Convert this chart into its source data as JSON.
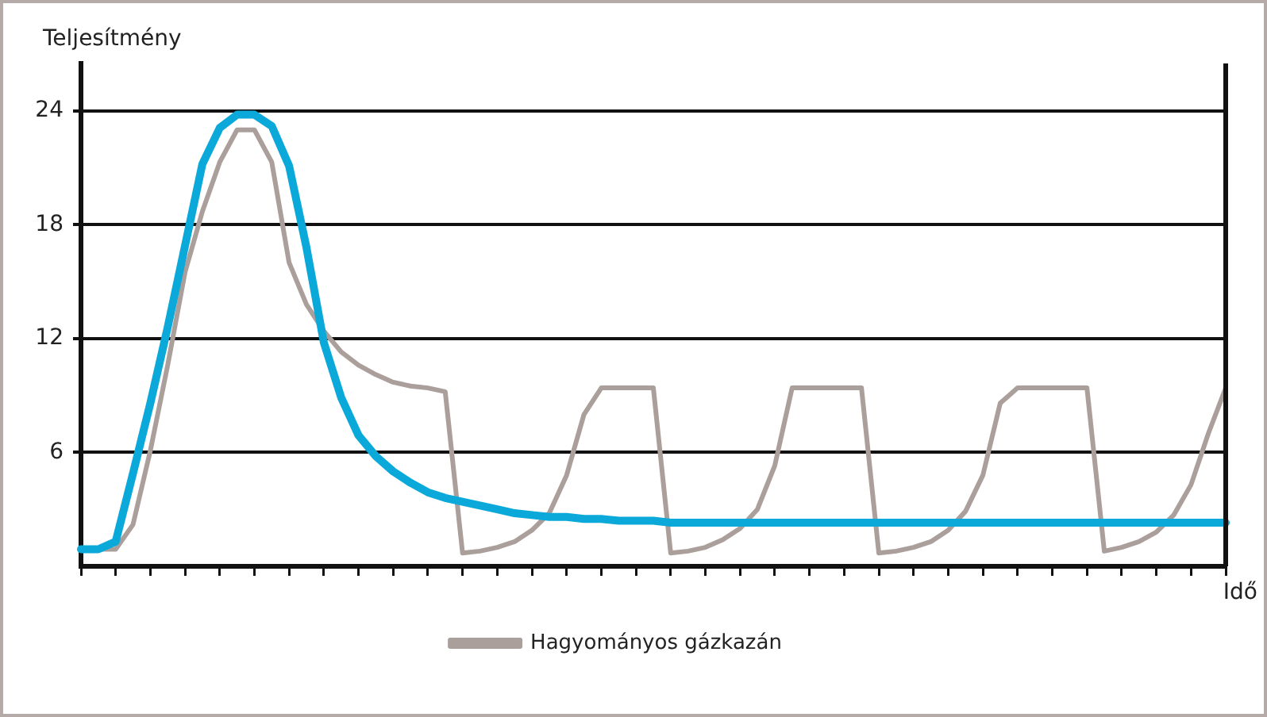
{
  "chart_data": {
    "type": "line",
    "xlabel": "Idő",
    "ylabel": "Teljesítmény",
    "ylim": [
      0,
      26.5
    ],
    "categories": [
      null,
      null,
      null,
      null,
      null,
      null,
      null,
      null,
      null,
      null,
      null,
      null,
      null,
      null,
      null,
      null,
      null,
      null,
      null,
      null,
      null,
      null,
      null,
      null,
      null,
      null,
      null,
      null,
      null,
      null,
      null,
      null,
      null,
      null,
      null,
      null,
      null,
      null,
      null,
      null,
      null,
      null,
      null,
      null,
      null,
      null,
      null,
      null,
      null,
      null,
      null,
      null,
      null,
      null,
      null,
      null,
      null,
      null,
      null,
      null,
      null,
      null,
      null,
      null,
      null,
      null,
      null
    ],
    "yticks": [
      6,
      12,
      18,
      24
    ],
    "grid": "y",
    "legend": "bottom",
    "tick_labels": "y",
    "marker": "none",
    "series": [
      {
        "color": "#0aa9d9",
        "values": [
          0.9,
          0.9,
          1.3,
          4.9,
          8.6,
          12.6,
          16.9,
          21.2,
          23.1,
          23.8,
          23.8,
          23.2,
          21.1,
          16.8,
          11.8,
          8.9,
          6.9,
          5.8,
          5.0,
          4.4,
          3.9,
          3.6,
          3.4,
          3.2,
          3.0,
          2.8,
          2.7,
          2.6,
          2.6,
          2.5,
          2.5,
          2.4,
          2.4,
          2.4,
          2.3,
          2.3,
          2.3,
          2.3,
          2.3,
          2.3,
          2.3,
          2.3,
          2.3,
          2.3,
          2.3,
          2.3,
          2.3,
          2.3,
          2.3,
          2.3,
          2.3,
          2.3,
          2.3,
          2.3,
          2.3,
          2.3,
          2.3,
          2.3,
          2.3,
          2.3,
          2.3,
          2.3,
          2.3,
          2.3,
          2.3,
          2.3,
          2.3
        ]
      },
      {
        "name": "Hagyományos gázkazán",
        "color": "#ab9f9c",
        "values": [
          null,
          0.9,
          0.9,
          2.2,
          6.1,
          10.6,
          15.5,
          18.7,
          21.3,
          23.0,
          23.0,
          21.3,
          16.0,
          13.8,
          12.4,
          11.3,
          10.6,
          10.1,
          9.7,
          9.5,
          9.4,
          9.2,
          0.7,
          0.8,
          1.0,
          1.3,
          1.9,
          2.8,
          4.8,
          8.0,
          9.4,
          9.4,
          9.4,
          9.4,
          0.7,
          0.8,
          1.0,
          1.4,
          2.0,
          3.0,
          5.3,
          9.4,
          9.4,
          9.4,
          9.4,
          9.4,
          0.7,
          0.8,
          1.0,
          1.3,
          1.9,
          2.9,
          4.8,
          8.6,
          9.4,
          9.4,
          9.4,
          9.4,
          9.4,
          0.8,
          1.0,
          1.3,
          1.8,
          2.7,
          4.3,
          7.0,
          9.4
        ]
      }
    ]
  }
}
